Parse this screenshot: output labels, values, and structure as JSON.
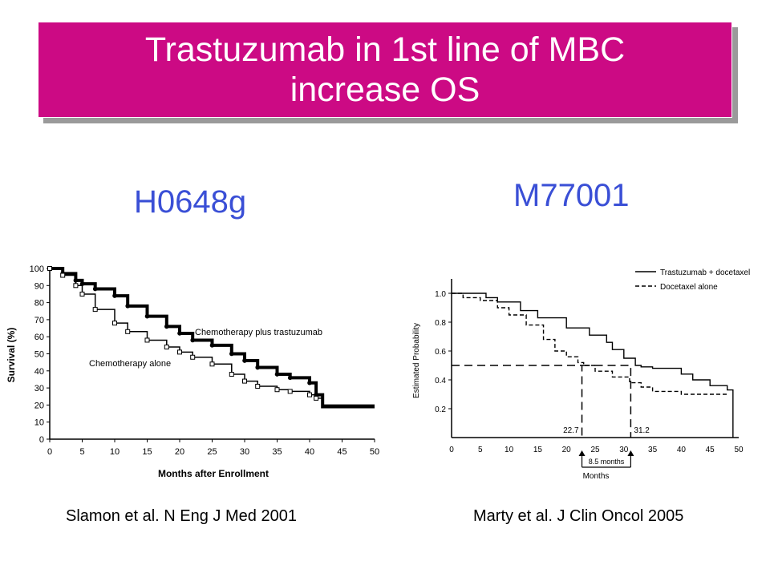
{
  "slide": {
    "title_line1": "Trastuzumab in 1st line of MBC",
    "title_line2": "increase OS",
    "title_bg": "#cc0a84",
    "label_left": "H0648g",
    "label_right": "M77001",
    "label_color": "#3a4fd6",
    "citation_left": "Slamon et al. N Eng J Med 2001",
    "citation_right": "Marty et al. J Clin Oncol 2005"
  },
  "chart_data": [
    {
      "type": "line",
      "ylabel": "Survival (%)",
      "xlabel": "Months after Enrollment",
      "xlim": [
        0,
        50
      ],
      "ylim": [
        0,
        100
      ],
      "xticks": [
        "0",
        "5",
        "10",
        "15",
        "20",
        "25",
        "30",
        "35",
        "40",
        "45",
        "50"
      ],
      "yticks": [
        "0",
        "10",
        "20",
        "30",
        "40",
        "50",
        "60",
        "70",
        "80",
        "90",
        "100"
      ],
      "annotations": [
        "Chemotherapy plus trastuzumab",
        "Chemotherapy alone"
      ],
      "series": [
        {
          "name": "Chemotherapy plus trastuzumab",
          "x": [
            0,
            2,
            4,
            5,
            7,
            10,
            12,
            15,
            18,
            20,
            22,
            25,
            28,
            30,
            32,
            35,
            37,
            40,
            41,
            42,
            45,
            50
          ],
          "y": [
            100,
            97,
            93,
            91,
            88,
            84,
            78,
            72,
            66,
            62,
            58,
            55,
            50,
            46,
            42,
            38,
            36,
            33,
            26,
            19,
            19,
            19
          ]
        },
        {
          "name": "Chemotherapy alone",
          "x": [
            0,
            2,
            4,
            5,
            7,
            10,
            12,
            15,
            18,
            20,
            22,
            25,
            28,
            30,
            32,
            35,
            37,
            40,
            41,
            42,
            45,
            50
          ],
          "y": [
            100,
            96,
            90,
            85,
            76,
            68,
            63,
            58,
            54,
            51,
            48,
            44,
            38,
            34,
            31,
            29,
            28,
            26,
            24,
            20,
            20,
            20
          ]
        }
      ]
    },
    {
      "type": "line",
      "ylabel": "Estimated Probability",
      "xlabel": "Months",
      "xlim": [
        0,
        50
      ],
      "ylim": [
        0,
        1.1
      ],
      "xticks": [
        "0",
        "5",
        "10",
        "15",
        "20",
        "25",
        "30",
        "35",
        "40",
        "45",
        "50"
      ],
      "yticks": [
        "0.2",
        "0.4",
        "0.6",
        "0.8",
        "1.0"
      ],
      "legend": "top-right",
      "annotations": [
        "22.7",
        "31.2",
        "8.5 months"
      ],
      "medians": [
        22.7,
        31.2
      ],
      "series": [
        {
          "name": "Trastuzumab + docetaxel",
          "x": [
            0,
            6,
            8,
            12,
            15,
            20,
            24,
            27,
            28,
            30,
            32,
            33,
            35,
            40,
            42,
            45,
            48,
            49
          ],
          "y": [
            1.0,
            0.97,
            0.94,
            0.88,
            0.83,
            0.76,
            0.71,
            0.66,
            0.61,
            0.55,
            0.5,
            0.49,
            0.48,
            0.44,
            0.4,
            0.36,
            0.33,
            0.33
          ]
        },
        {
          "name": "Docetaxel alone",
          "x": [
            0,
            2,
            5,
            8,
            10,
            13,
            16,
            18,
            20,
            22,
            23,
            25,
            28,
            31,
            33,
            35,
            40,
            43,
            48
          ],
          "y": [
            1.0,
            0.97,
            0.95,
            0.9,
            0.85,
            0.78,
            0.68,
            0.6,
            0.56,
            0.52,
            0.5,
            0.46,
            0.42,
            0.38,
            0.35,
            0.32,
            0.3,
            0.3,
            0.3
          ]
        }
      ]
    }
  ]
}
